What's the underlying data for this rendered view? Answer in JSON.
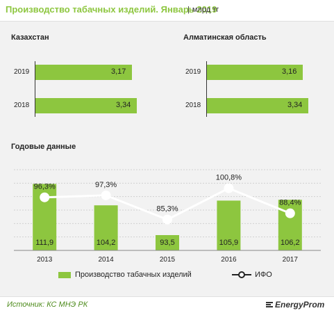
{
  "header": {
    "title": "Производство табачных изделий. Январь 2019",
    "unit": "млрд тг"
  },
  "panels": [
    {
      "title": "Казахстан",
      "rows": [
        {
          "year": "2019",
          "value": "3,17"
        },
        {
          "year": "2018",
          "value": "3,34"
        }
      ]
    },
    {
      "title": "Алматинская  область",
      "rows": [
        {
          "year": "2019",
          "value": "3,16"
        },
        {
          "year": "2018",
          "value": "3,34"
        }
      ]
    }
  ],
  "annual_title": "Годовые данные",
  "chart_data": {
    "type": "bar",
    "categories": [
      "2013",
      "2014",
      "2015",
      "2016",
      "2017"
    ],
    "series": [
      {
        "name": "Производство табачных изделий",
        "values": [
          111.9,
          104.2,
          93.5,
          105.9,
          106.2
        ],
        "labels": [
          "111,9",
          "104,2",
          "93,5",
          "105,9",
          "106,2"
        ],
        "color": "#8dc63f"
      },
      {
        "name": "ИФО",
        "type": "line",
        "values": [
          96.3,
          97.3,
          85.3,
          100.8,
          88.4
        ],
        "labels": [
          "96,3%",
          "97,3%",
          "85,3%",
          "100,8%",
          "88,4%"
        ],
        "color": "#ffffff"
      }
    ],
    "bar_ylim": [
      88,
      117
    ],
    "line_ylim": [
      70,
      110
    ],
    "grid": true,
    "legend": "bottom"
  },
  "footer": {
    "source": "Источник: КС МНЭ РК",
    "brand": "EnergyProm"
  }
}
